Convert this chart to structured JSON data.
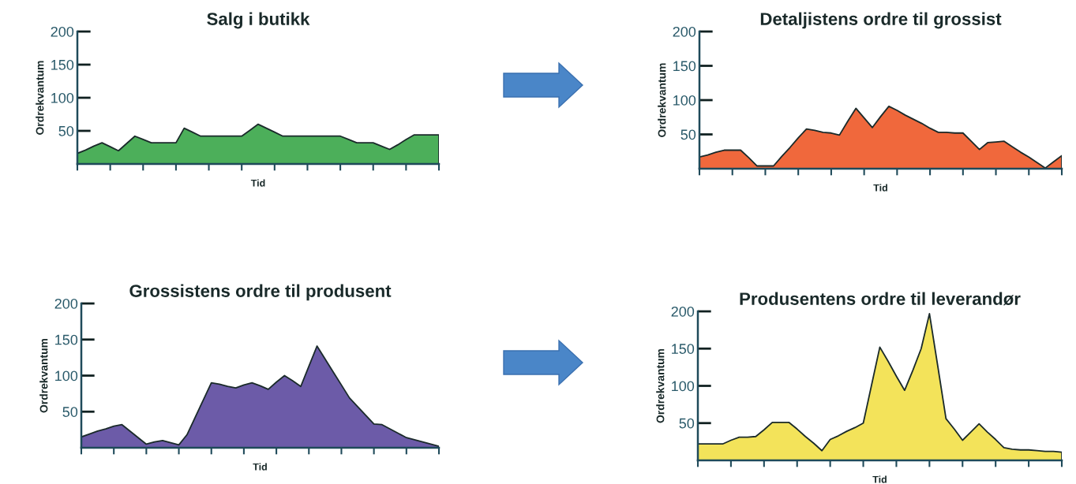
{
  "chart_data": [
    {
      "type": "area",
      "title": "Salg i butikk",
      "xlabel": "Tid",
      "ylabel": "Ordrekvantum",
      "color": "#4caf5a",
      "tick_labels": "y",
      "grid": false,
      "categories": [
        null,
        null,
        null,
        null,
        null,
        null,
        null,
        null,
        null,
        null,
        null,
        null,
        null,
        null,
        null,
        null,
        null,
        null,
        null,
        null,
        null,
        null,
        null,
        null,
        null,
        null,
        null,
        null,
        null,
        null,
        null,
        null,
        null,
        null,
        null,
        null,
        null,
        null,
        null,
        null,
        null,
        null,
        null,
        null,
        null
      ],
      "values": [
        16,
        21,
        27,
        32,
        26,
        20,
        31,
        42,
        37,
        32,
        32,
        32,
        32,
        54,
        48,
        42,
        42,
        42,
        42,
        42,
        42,
        51,
        60,
        54,
        48,
        42,
        42,
        42,
        42,
        42,
        42,
        42,
        42,
        37,
        32,
        32,
        32,
        27,
        22,
        29,
        37,
        44,
        44,
        44,
        44
      ],
      "ylim": [
        0,
        200
      ],
      "yticks": [
        50,
        100,
        150,
        200
      ]
    },
    {
      "type": "area",
      "title": "Detaljistens ordre til grossist",
      "xlabel": "Tid",
      "ylabel": "Ordrekvantum",
      "color": "#f0683c",
      "tick_labels": "y",
      "grid": false,
      "categories": [
        null,
        null,
        null,
        null,
        null,
        null,
        null,
        null,
        null,
        null,
        null,
        null,
        null,
        null,
        null,
        null,
        null,
        null,
        null,
        null,
        null,
        null,
        null,
        null,
        null,
        null,
        null,
        null,
        null,
        null,
        null,
        null,
        null,
        null,
        null,
        null,
        null,
        null,
        null,
        null,
        null,
        null,
        null,
        null,
        null
      ],
      "values": [
        17,
        20,
        24,
        27,
        27,
        27,
        16,
        4,
        4,
        4,
        18,
        31,
        45,
        58,
        56,
        53,
        52,
        49,
        69,
        88,
        74,
        60,
        76,
        91,
        85,
        78,
        72,
        66,
        59,
        53,
        53,
        52,
        52,
        40,
        28,
        38,
        39,
        40,
        32,
        24,
        17,
        9,
        1,
        10,
        19
      ],
      "ylim": [
        0,
        200
      ],
      "yticks": [
        50,
        100,
        150,
        200
      ]
    },
    {
      "type": "area",
      "title": "Grossistens ordre til produsent",
      "xlabel": "Tid",
      "ylabel": "Ordrekvantum",
      "color": "#6c5ba8",
      "tick_labels": "y",
      "grid": false,
      "categories": [
        null,
        null,
        null,
        null,
        null,
        null,
        null,
        null,
        null,
        null,
        null,
        null,
        null,
        null,
        null,
        null,
        null,
        null,
        null,
        null,
        null,
        null,
        null,
        null,
        null,
        null,
        null,
        null,
        null,
        null,
        null,
        null,
        null,
        null,
        null,
        null,
        null,
        null,
        null,
        null,
        null,
        null,
        null,
        null,
        null
      ],
      "values": [
        15,
        19,
        23,
        26,
        30,
        32,
        23,
        14,
        5,
        8,
        10,
        7,
        4,
        18,
        42,
        66,
        90,
        88,
        85,
        83,
        87,
        90,
        86,
        81,
        91,
        100,
        93,
        85,
        113,
        141,
        123,
        105,
        87,
        69,
        57,
        45,
        33,
        32,
        26,
        20,
        14,
        11,
        8,
        5,
        2
      ],
      "ylim": [
        0,
        200
      ],
      "yticks": [
        50,
        100,
        150,
        200
      ]
    },
    {
      "type": "area",
      "title": "Produsentens ordre til leverandør",
      "xlabel": "Tid",
      "ylabel": "Ordrekvantum",
      "color": "#f3e35a",
      "tick_labels": "y",
      "grid": false,
      "categories": [
        null,
        null,
        null,
        null,
        null,
        null,
        null,
        null,
        null,
        null,
        null,
        null,
        null,
        null,
        null,
        null,
        null,
        null,
        null,
        null,
        null,
        null,
        null,
        null,
        null,
        null,
        null,
        null,
        null,
        null,
        null,
        null,
        null,
        null,
        null,
        null,
        null,
        null,
        null,
        null,
        null,
        null,
        null,
        null,
        null
      ],
      "values": [
        22,
        22,
        22,
        22,
        27,
        31,
        31,
        32,
        41,
        51,
        51,
        51,
        42,
        32,
        23,
        13,
        28,
        33,
        39,
        44,
        50,
        101,
        152,
        133,
        113,
        94,
        121,
        150,
        197,
        127,
        56,
        42,
        27,
        38,
        49,
        38,
        28,
        17,
        15,
        14,
        14,
        13,
        12,
        12,
        11
      ],
      "ylim": [
        0,
        200
      ],
      "yticks": [
        50,
        100,
        150,
        200
      ]
    }
  ]
}
